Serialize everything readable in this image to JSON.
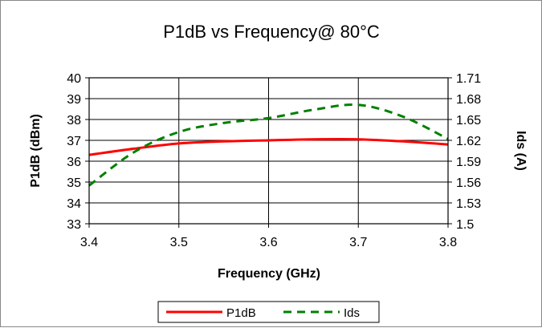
{
  "chart_data": {
    "type": "line",
    "title": "P1dB vs Frequency@ 80°C",
    "xlabel": "Frequency (GHz)",
    "ylabel": "P1dB (dBm)",
    "y2label": "Ids (A)",
    "xlim": [
      3.4,
      3.8
    ],
    "ylim": [
      33,
      40
    ],
    "y2lim": [
      1.5,
      1.71
    ],
    "x_ticks": [
      "3.4",
      "3.5",
      "3.6",
      "3.7",
      "3.8"
    ],
    "y_ticks": [
      "33",
      "34",
      "35",
      "36",
      "37",
      "38",
      "39",
      "40"
    ],
    "y2_ticks": [
      "1.5",
      "1.53",
      "1.56",
      "1.59",
      "1.62",
      "1.65",
      "1.68",
      "1.71"
    ],
    "grid": true,
    "legend_position": "bottom",
    "series": [
      {
        "name": "P1dB",
        "axis": "left",
        "color": "#ff0000",
        "style": "solid",
        "x": [
          3.4,
          3.45,
          3.5,
          3.55,
          3.6,
          3.65,
          3.7,
          3.75,
          3.8
        ],
        "y": [
          36.3,
          36.6,
          36.85,
          36.95,
          37.0,
          37.05,
          37.05,
          36.95,
          36.8
        ]
      },
      {
        "name": "Ids",
        "axis": "right",
        "color": "#008000",
        "style": "dashed",
        "x": [
          3.4,
          3.45,
          3.5,
          3.55,
          3.6,
          3.65,
          3.7,
          3.75,
          3.8
        ],
        "y": [
          1.555,
          1.603,
          1.632,
          1.645,
          1.652,
          1.664,
          1.671,
          1.654,
          1.622
        ]
      }
    ]
  }
}
